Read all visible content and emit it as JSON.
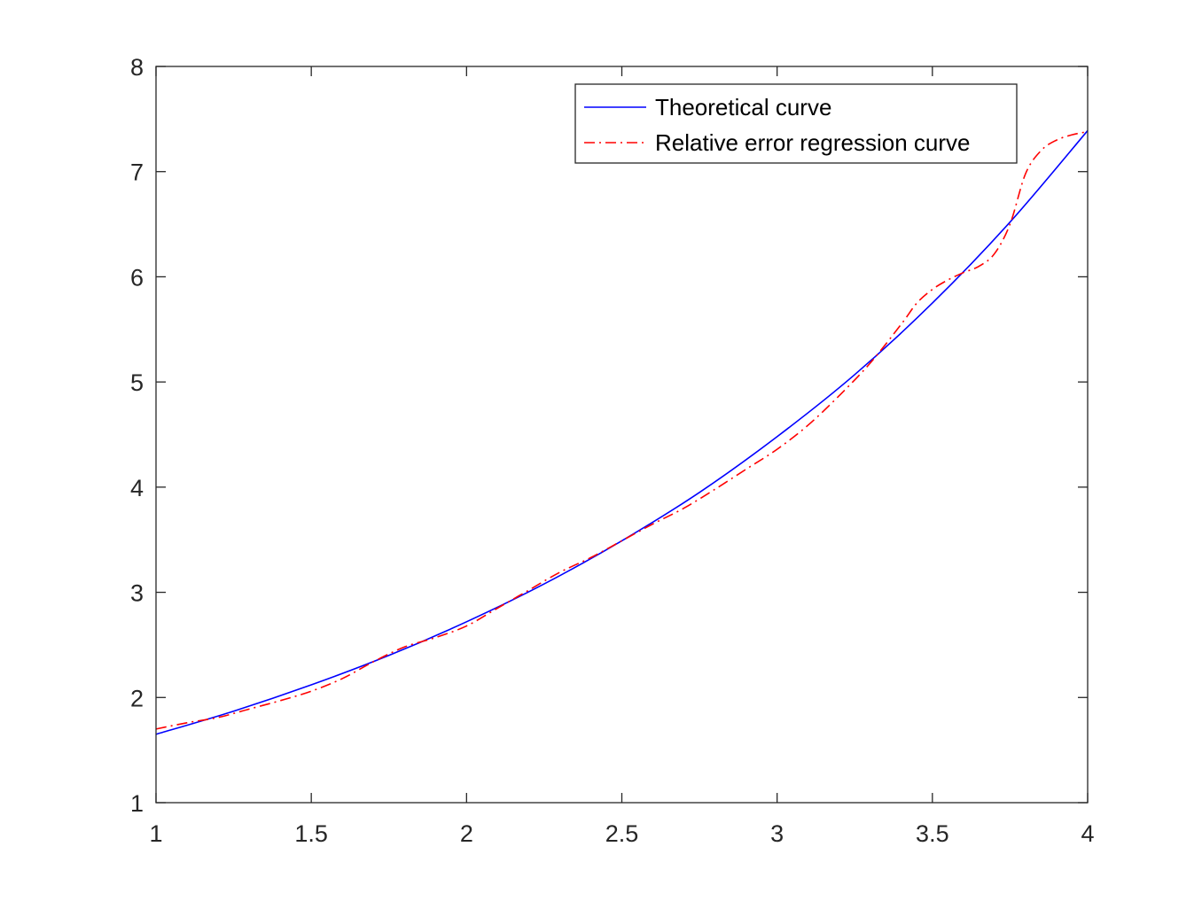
{
  "chart_data": {
    "type": "line",
    "title": "",
    "xlabel": "",
    "ylabel": "",
    "xlim": [
      1,
      4
    ],
    "ylim": [
      1,
      8
    ],
    "x_ticks": [
      "1",
      "1.5",
      "2",
      "2.5",
      "3",
      "3.5",
      "4"
    ],
    "y_ticks": [
      "1",
      "2",
      "3",
      "4",
      "5",
      "6",
      "7",
      "8"
    ],
    "grid": false,
    "legend_position": "top-right",
    "series": [
      {
        "name": "Theoretical curve",
        "color": "#0000ff",
        "line_style": "solid",
        "x": [
          1.0,
          1.25,
          1.5,
          1.75,
          2.0,
          2.25,
          2.5,
          2.75,
          3.0,
          3.25,
          3.5,
          3.75,
          4.0
        ],
        "y": [
          1.65,
          1.87,
          2.12,
          2.4,
          2.72,
          3.08,
          3.49,
          3.95,
          4.48,
          5.07,
          5.75,
          6.52,
          7.39
        ]
      },
      {
        "name": "Relative error regression curve",
        "color": "#ff0000",
        "line_style": "dash-dot",
        "x": [
          1.0,
          1.1,
          1.2,
          1.3,
          1.4,
          1.5,
          1.6,
          1.7,
          1.8,
          1.9,
          2.0,
          2.1,
          2.2,
          2.3,
          2.4,
          2.5,
          2.6,
          2.7,
          2.8,
          2.9,
          3.0,
          3.1,
          3.2,
          3.3,
          3.4,
          3.45,
          3.5,
          3.55,
          3.6,
          3.65,
          3.7,
          3.75,
          3.8,
          3.85,
          3.9,
          3.95,
          4.0
        ],
        "y": [
          1.7,
          1.76,
          1.81,
          1.89,
          1.97,
          2.06,
          2.18,
          2.34,
          2.48,
          2.57,
          2.68,
          2.85,
          3.02,
          3.19,
          3.33,
          3.49,
          3.65,
          3.8,
          3.98,
          4.17,
          4.36,
          4.59,
          4.87,
          5.18,
          5.55,
          5.75,
          5.88,
          5.97,
          6.04,
          6.1,
          6.22,
          6.5,
          6.98,
          7.2,
          7.3,
          7.35,
          7.38
        ]
      }
    ]
  }
}
